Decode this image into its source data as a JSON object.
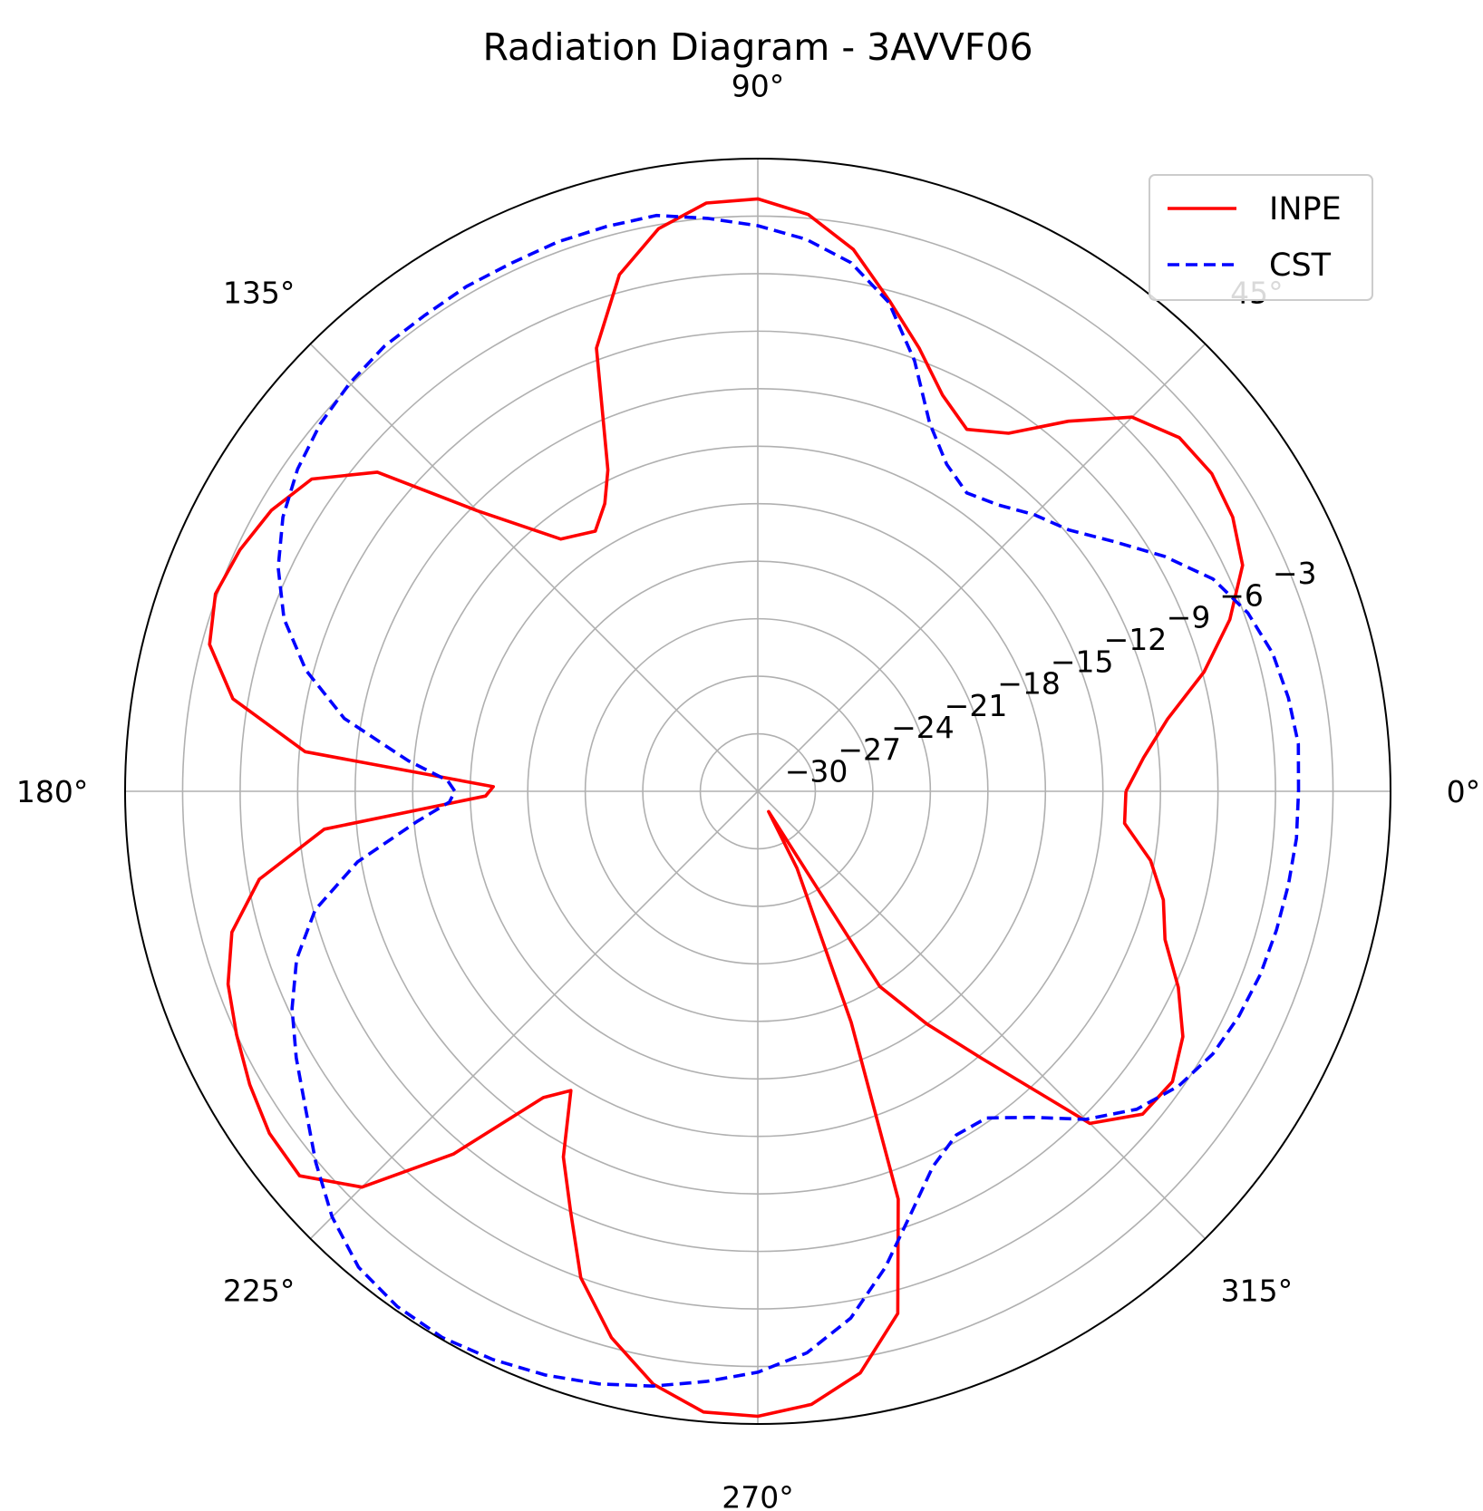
{
  "chart_data": {
    "type": "line",
    "projection": "polar",
    "title": "Radiation Diagram - 3AVVF06",
    "theta_unit": "degrees",
    "theta_tick_labels": [
      "0°",
      "45°",
      "90°",
      "135°",
      "180°",
      "225°",
      "270°",
      "315°"
    ],
    "r_tick_labels": [
      "−30",
      "−27",
      "−24",
      "−21",
      "−18",
      "−15",
      "−12",
      "−9",
      "−6",
      "−3"
    ],
    "rlim": [
      -33,
      0
    ],
    "grid": true,
    "legend_position": "upper-right",
    "series": [
      {
        "name": "INPE",
        "color": "#ff0000",
        "line_style": "solid",
        "points": [
          [
            0,
            -13.8
          ],
          [
            5,
            -12.8
          ],
          [
            10,
            -11.3
          ],
          [
            15,
            -8.9
          ],
          [
            20,
            -6.8
          ],
          [
            25,
            -5.1
          ],
          [
            30,
            -4.4
          ],
          [
            35,
            -4.1
          ],
          [
            40,
            -4.3
          ],
          [
            45,
            -5.4
          ],
          [
            50,
            -7.8
          ],
          [
            55,
            -10.2
          ],
          [
            60,
            -11.2
          ],
          [
            65,
            -10.2
          ],
          [
            70,
            -8.4
          ],
          [
            75,
            -6.5
          ],
          [
            80,
            -4.3
          ],
          [
            85,
            -2.8
          ],
          [
            90,
            -2.1
          ],
          [
            95,
            -2.2
          ],
          [
            100,
            -3.2
          ],
          [
            105,
            -5.1
          ],
          [
            110,
            -8.4
          ],
          [
            115,
            -14.5
          ],
          [
            118,
            -16.0
          ],
          [
            122,
            -17.0
          ],
          [
            128,
            -16.3
          ],
          [
            135,
            -12.3
          ],
          [
            140,
            -7.1
          ],
          [
            145,
            -4.6
          ],
          [
            150,
            -3.7
          ],
          [
            155,
            -3.2
          ],
          [
            160,
            -2.9
          ],
          [
            165,
            -3.4
          ],
          [
            170,
            -5.2
          ],
          [
            175,
            -9.3
          ],
          [
            179,
            -19.2
          ],
          [
            181,
            -18.8
          ],
          [
            185,
            -10.3
          ],
          [
            190,
            -6.6
          ],
          [
            195,
            -4.6
          ],
          [
            200,
            -3.6
          ],
          [
            205,
            -3.0
          ],
          [
            210,
            -2.4
          ],
          [
            215,
            -1.9
          ],
          [
            220,
            -1.8
          ],
          [
            225,
            -3.8
          ],
          [
            230,
            -8.3
          ],
          [
            235,
            -13.5
          ],
          [
            238,
            -14.6
          ],
          [
            242,
            -11.4
          ],
          [
            246,
            -9.0
          ],
          [
            250,
            -6.0
          ],
          [
            255,
            -3.5
          ],
          [
            260,
            -1.6
          ],
          [
            265,
            -0.5
          ],
          [
            270,
            -0.4
          ],
          [
            275,
            -0.9
          ],
          [
            280,
            -2.2
          ],
          [
            285,
            -4.8
          ],
          [
            289,
            -10.5
          ],
          [
            292,
            -20.0
          ],
          [
            297,
            -28.5
          ],
          [
            298,
            -31.8
          ],
          [
            302,
            -21.0
          ],
          [
            306,
            -18.0
          ],
          [
            310,
            -14.8
          ],
          [
            315,
            -8.5
          ],
          [
            320,
            -6.8
          ],
          [
            325,
            -6.6
          ],
          [
            330,
            -7.4
          ],
          [
            335,
            -8.8
          ],
          [
            340,
            -10.4
          ],
          [
            345,
            -11.1
          ],
          [
            350,
            -12.2
          ],
          [
            355,
            -13.8
          ],
          [
            360,
            -13.8
          ]
        ]
      },
      {
        "name": "CST",
        "color": "#0000ff",
        "line_style": "dashed",
        "points": [
          [
            0,
            -4.8
          ],
          [
            5,
            -4.7
          ],
          [
            10,
            -4.9
          ],
          [
            15,
            -5.2
          ],
          [
            20,
            -5.8
          ],
          [
            25,
            -6.8
          ],
          [
            30,
            -8.5
          ],
          [
            35,
            -10.3
          ],
          [
            40,
            -11.8
          ],
          [
            45,
            -12.6
          ],
          [
            50,
            -13.5
          ],
          [
            55,
            -14.0
          ],
          [
            60,
            -13.3
          ],
          [
            65,
            -11.8
          ],
          [
            70,
            -9.1
          ],
          [
            75,
            -6.6
          ],
          [
            80,
            -5.0
          ],
          [
            85,
            -4.1
          ],
          [
            90,
            -3.5
          ],
          [
            95,
            -3.0
          ],
          [
            100,
            -2.5
          ],
          [
            105,
            -2.5
          ],
          [
            110,
            -2.5
          ],
          [
            115,
            -2.6
          ],
          [
            120,
            -2.6
          ],
          [
            125,
            -2.7
          ],
          [
            130,
            -2.7
          ],
          [
            135,
            -2.9
          ],
          [
            140,
            -3.2
          ],
          [
            145,
            -3.7
          ],
          [
            150,
            -4.4
          ],
          [
            155,
            -5.4
          ],
          [
            160,
            -6.7
          ],
          [
            165,
            -8.6
          ],
          [
            170,
            -11.1
          ],
          [
            175,
            -14.7
          ],
          [
            178,
            -16.8
          ],
          [
            180,
            -17.2
          ],
          [
            182,
            -16.9
          ],
          [
            185,
            -15.2
          ],
          [
            190,
            -11.8
          ],
          [
            195,
            -9.1
          ],
          [
            200,
            -7.4
          ],
          [
            205,
            -6.2
          ],
          [
            210,
            -5.2
          ],
          [
            215,
            -4.2
          ],
          [
            220,
            -2.9
          ],
          [
            225,
            -1.6
          ],
          [
            230,
            -0.6
          ],
          [
            235,
            -0.2
          ],
          [
            240,
            -0.1
          ],
          [
            245,
            -0.3
          ],
          [
            250,
            -0.6
          ],
          [
            255,
            -1.0
          ],
          [
            260,
            -1.5
          ],
          [
            265,
            -2.1
          ],
          [
            270,
            -2.7
          ],
          [
            275,
            -3.6
          ],
          [
            280,
            -5.1
          ],
          [
            285,
            -7.3
          ],
          [
            290,
            -9.6
          ],
          [
            295,
            -11.4
          ],
          [
            300,
            -12.3
          ],
          [
            305,
            -12.2
          ],
          [
            310,
            -10.8
          ],
          [
            315,
            -8.8
          ],
          [
            320,
            -7.2
          ],
          [
            325,
            -6.2
          ],
          [
            330,
            -5.6
          ],
          [
            335,
            -5.3
          ],
          [
            340,
            -5.1
          ],
          [
            345,
            -5.0
          ],
          [
            350,
            -4.9
          ],
          [
            355,
            -4.8
          ],
          [
            360,
            -4.8
          ]
        ]
      }
    ]
  }
}
